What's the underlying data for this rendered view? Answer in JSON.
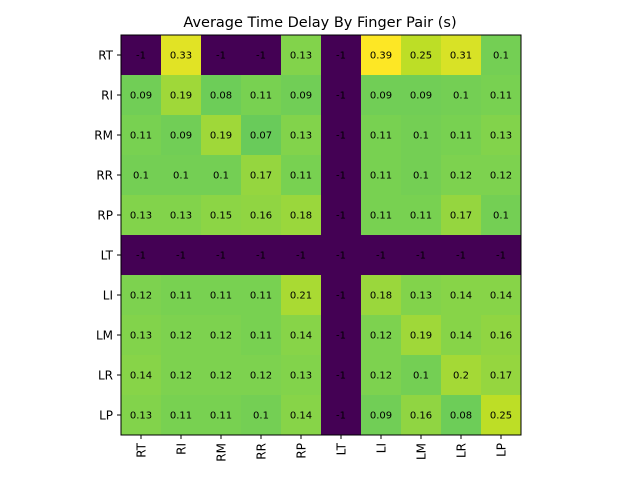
{
  "chart_data": {
    "type": "heatmap",
    "title": "Average Time Delay By Finger Pair (s)",
    "x_categories": [
      "RT",
      "RI",
      "RM",
      "RR",
      "RP",
      "LT",
      "LI",
      "LM",
      "LR",
      "LP"
    ],
    "y_categories": [
      "RT",
      "RI",
      "RM",
      "RR",
      "RP",
      "LT",
      "LI",
      "LM",
      "LR",
      "LP"
    ],
    "values": [
      [
        -1,
        0.33,
        -1,
        -1,
        0.13,
        -1,
        0.39,
        0.25,
        0.31,
        0.1
      ],
      [
        0.09,
        0.19,
        0.08,
        0.11,
        0.09,
        -1,
        0.09,
        0.09,
        0.1,
        0.11
      ],
      [
        0.11,
        0.09,
        0.19,
        0.07,
        0.13,
        -1,
        0.11,
        0.1,
        0.11,
        0.13
      ],
      [
        0.1,
        0.1,
        0.1,
        0.17,
        0.11,
        -1,
        0.11,
        0.1,
        0.12,
        0.12
      ],
      [
        0.13,
        0.13,
        0.15,
        0.16,
        0.18,
        -1,
        0.11,
        0.11,
        0.17,
        0.1
      ],
      [
        -1,
        -1,
        -1,
        -1,
        -1,
        -1,
        -1,
        -1,
        -1,
        -1
      ],
      [
        0.12,
        0.11,
        0.11,
        0.11,
        0.21,
        -1,
        0.18,
        0.13,
        0.14,
        0.14
      ],
      [
        0.13,
        0.12,
        0.12,
        0.11,
        0.14,
        -1,
        0.12,
        0.19,
        0.14,
        0.16
      ],
      [
        0.14,
        0.12,
        0.12,
        0.12,
        0.13,
        -1,
        0.12,
        0.1,
        0.2,
        0.17
      ],
      [
        0.13,
        0.11,
        0.11,
        0.1,
        0.14,
        -1,
        0.09,
        0.16,
        0.08,
        0.25
      ]
    ],
    "value_range": [
      -1,
      0.39
    ],
    "colormap": "viridis",
    "x_tick_rotation": "vertical",
    "grid": false,
    "legend": "none"
  }
}
